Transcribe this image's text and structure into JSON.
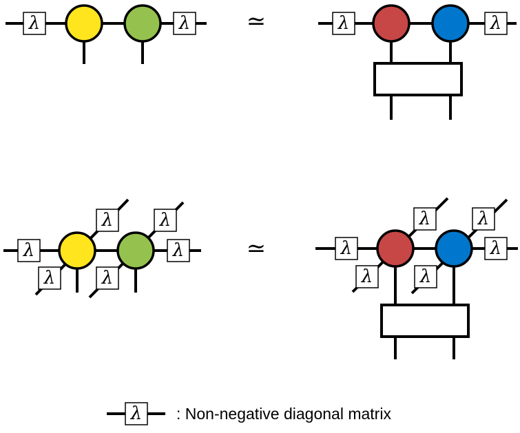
{
  "diagram": {
    "lambda_symbol": "λ",
    "equivalence_symbol": "≃",
    "legend": {
      "text": ": Non-negative diagonal matrix"
    },
    "colors": {
      "line": "#000000",
      "tensor_yellow": "#FFE51E",
      "tensor_green": "#95C24F",
      "tensor_red": "#C74646",
      "tensor_blue": "#0077CC",
      "box_fill": "#FFFFFF"
    }
  }
}
